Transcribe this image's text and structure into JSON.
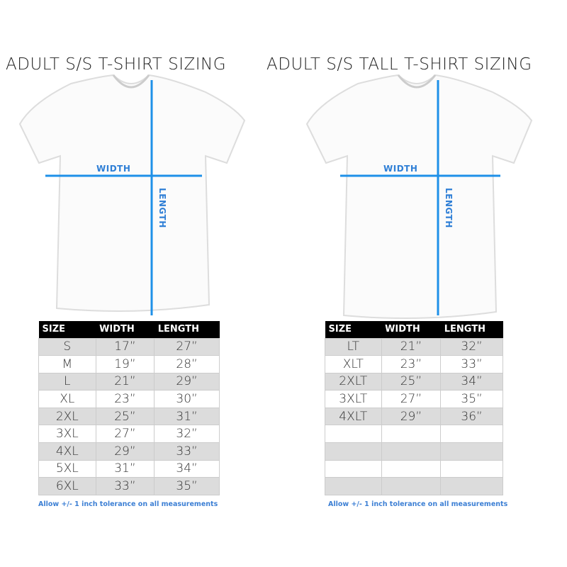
{
  "colors": {
    "measure_line": "#1e90e8",
    "header_bg": "#000000",
    "note": "#3c7fd4",
    "alt_row": "#dcdcdc"
  },
  "left": {
    "title": "ADULT S/S T-SHIRT SIZING",
    "width_label": "WIDTH",
    "length_label": "LENGTH",
    "headers": [
      "SIZE",
      "WIDTH",
      "LENGTH"
    ],
    "rows": [
      [
        "S",
        "17”",
        "27”"
      ],
      [
        "M",
        "19”",
        "28”"
      ],
      [
        "L",
        "21”",
        "29”"
      ],
      [
        "XL",
        "23”",
        "30”"
      ],
      [
        "2XL",
        "25”",
        "31”"
      ],
      [
        "3XL",
        "27”",
        "32”"
      ],
      [
        "4XL",
        "29”",
        "33”"
      ],
      [
        "5XL",
        "31”",
        "34”"
      ],
      [
        "6XL",
        "33”",
        "35”"
      ]
    ],
    "note": "Allow +/- 1 inch tolerance on all measurements"
  },
  "right": {
    "title": "ADULT S/S TALL T-SHIRT SIZING",
    "width_label": "WIDTH",
    "length_label": "LENGTH",
    "headers": [
      "SIZE",
      "WIDTH",
      "LENGTH"
    ],
    "rows": [
      [
        "LT",
        "21”",
        "32”"
      ],
      [
        "XLT",
        "23”",
        "33”"
      ],
      [
        "2XLT",
        "25”",
        "34”"
      ],
      [
        "3XLT",
        "27”",
        "35”"
      ],
      [
        "4XLT",
        "29”",
        "36”"
      ],
      [
        "",
        "",
        ""
      ],
      [
        "",
        "",
        ""
      ],
      [
        "",
        "",
        ""
      ],
      [
        "",
        "",
        ""
      ]
    ],
    "note": "Allow +/- 1 inch tolerance on all measurements"
  }
}
